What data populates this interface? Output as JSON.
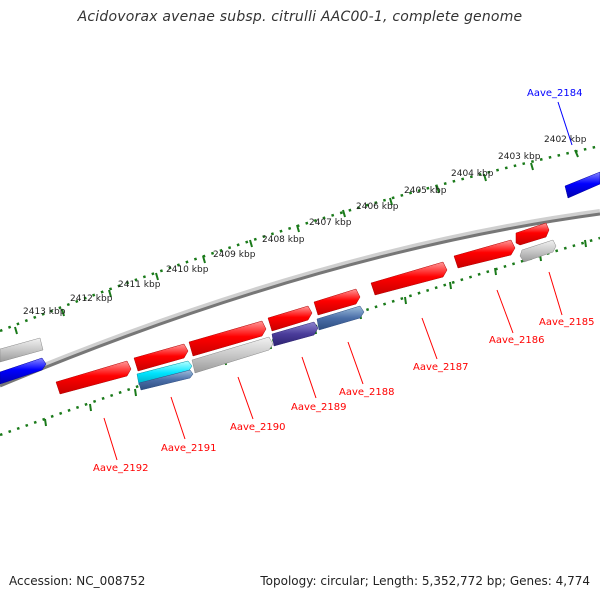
{
  "title": "Acidovorax avenae subsp. citrulli AAC00-1, complete genome",
  "footer": {
    "accession": "Accession: NC_008752",
    "stats": "Topology: circular; Length: 5,352,772 bp; Genes: 4,774"
  },
  "colors": {
    "forward_gene": "#ff0000",
    "highlight_gene": "#0000ff",
    "cyan_gene": "#00e5ff",
    "blue_gene": "#3f5fa0",
    "purple_gene": "#4a3c9a",
    "grey_gene": "#bbbbbb",
    "backbone": "#888888",
    "ticks": "#1a7a1a",
    "label_red": "#ff0000",
    "label_blue": "#0000ff"
  },
  "scale_kbp": [
    "2402 kbp",
    "2403 kbp",
    "2404 kbp",
    "2405 kbp",
    "2406 kbp",
    "2407 kbp",
    "2408 kbp",
    "2409 kbp",
    "2410 kbp",
    "2411 kbp",
    "2412 kbp",
    "2413 kbp"
  ],
  "genes": [
    {
      "name": "Aave_2184",
      "color": "blue"
    },
    {
      "name": "Aave_2185",
      "color": "red"
    },
    {
      "name": "Aave_2186",
      "color": "red"
    },
    {
      "name": "Aave_2187",
      "color": "red"
    },
    {
      "name": "Aave_2188",
      "color": "red"
    },
    {
      "name": "Aave_2189",
      "color": "red"
    },
    {
      "name": "Aave_2190",
      "color": "red"
    },
    {
      "name": "Aave_2191",
      "color": "red"
    },
    {
      "name": "Aave_2192",
      "color": "red"
    }
  ]
}
